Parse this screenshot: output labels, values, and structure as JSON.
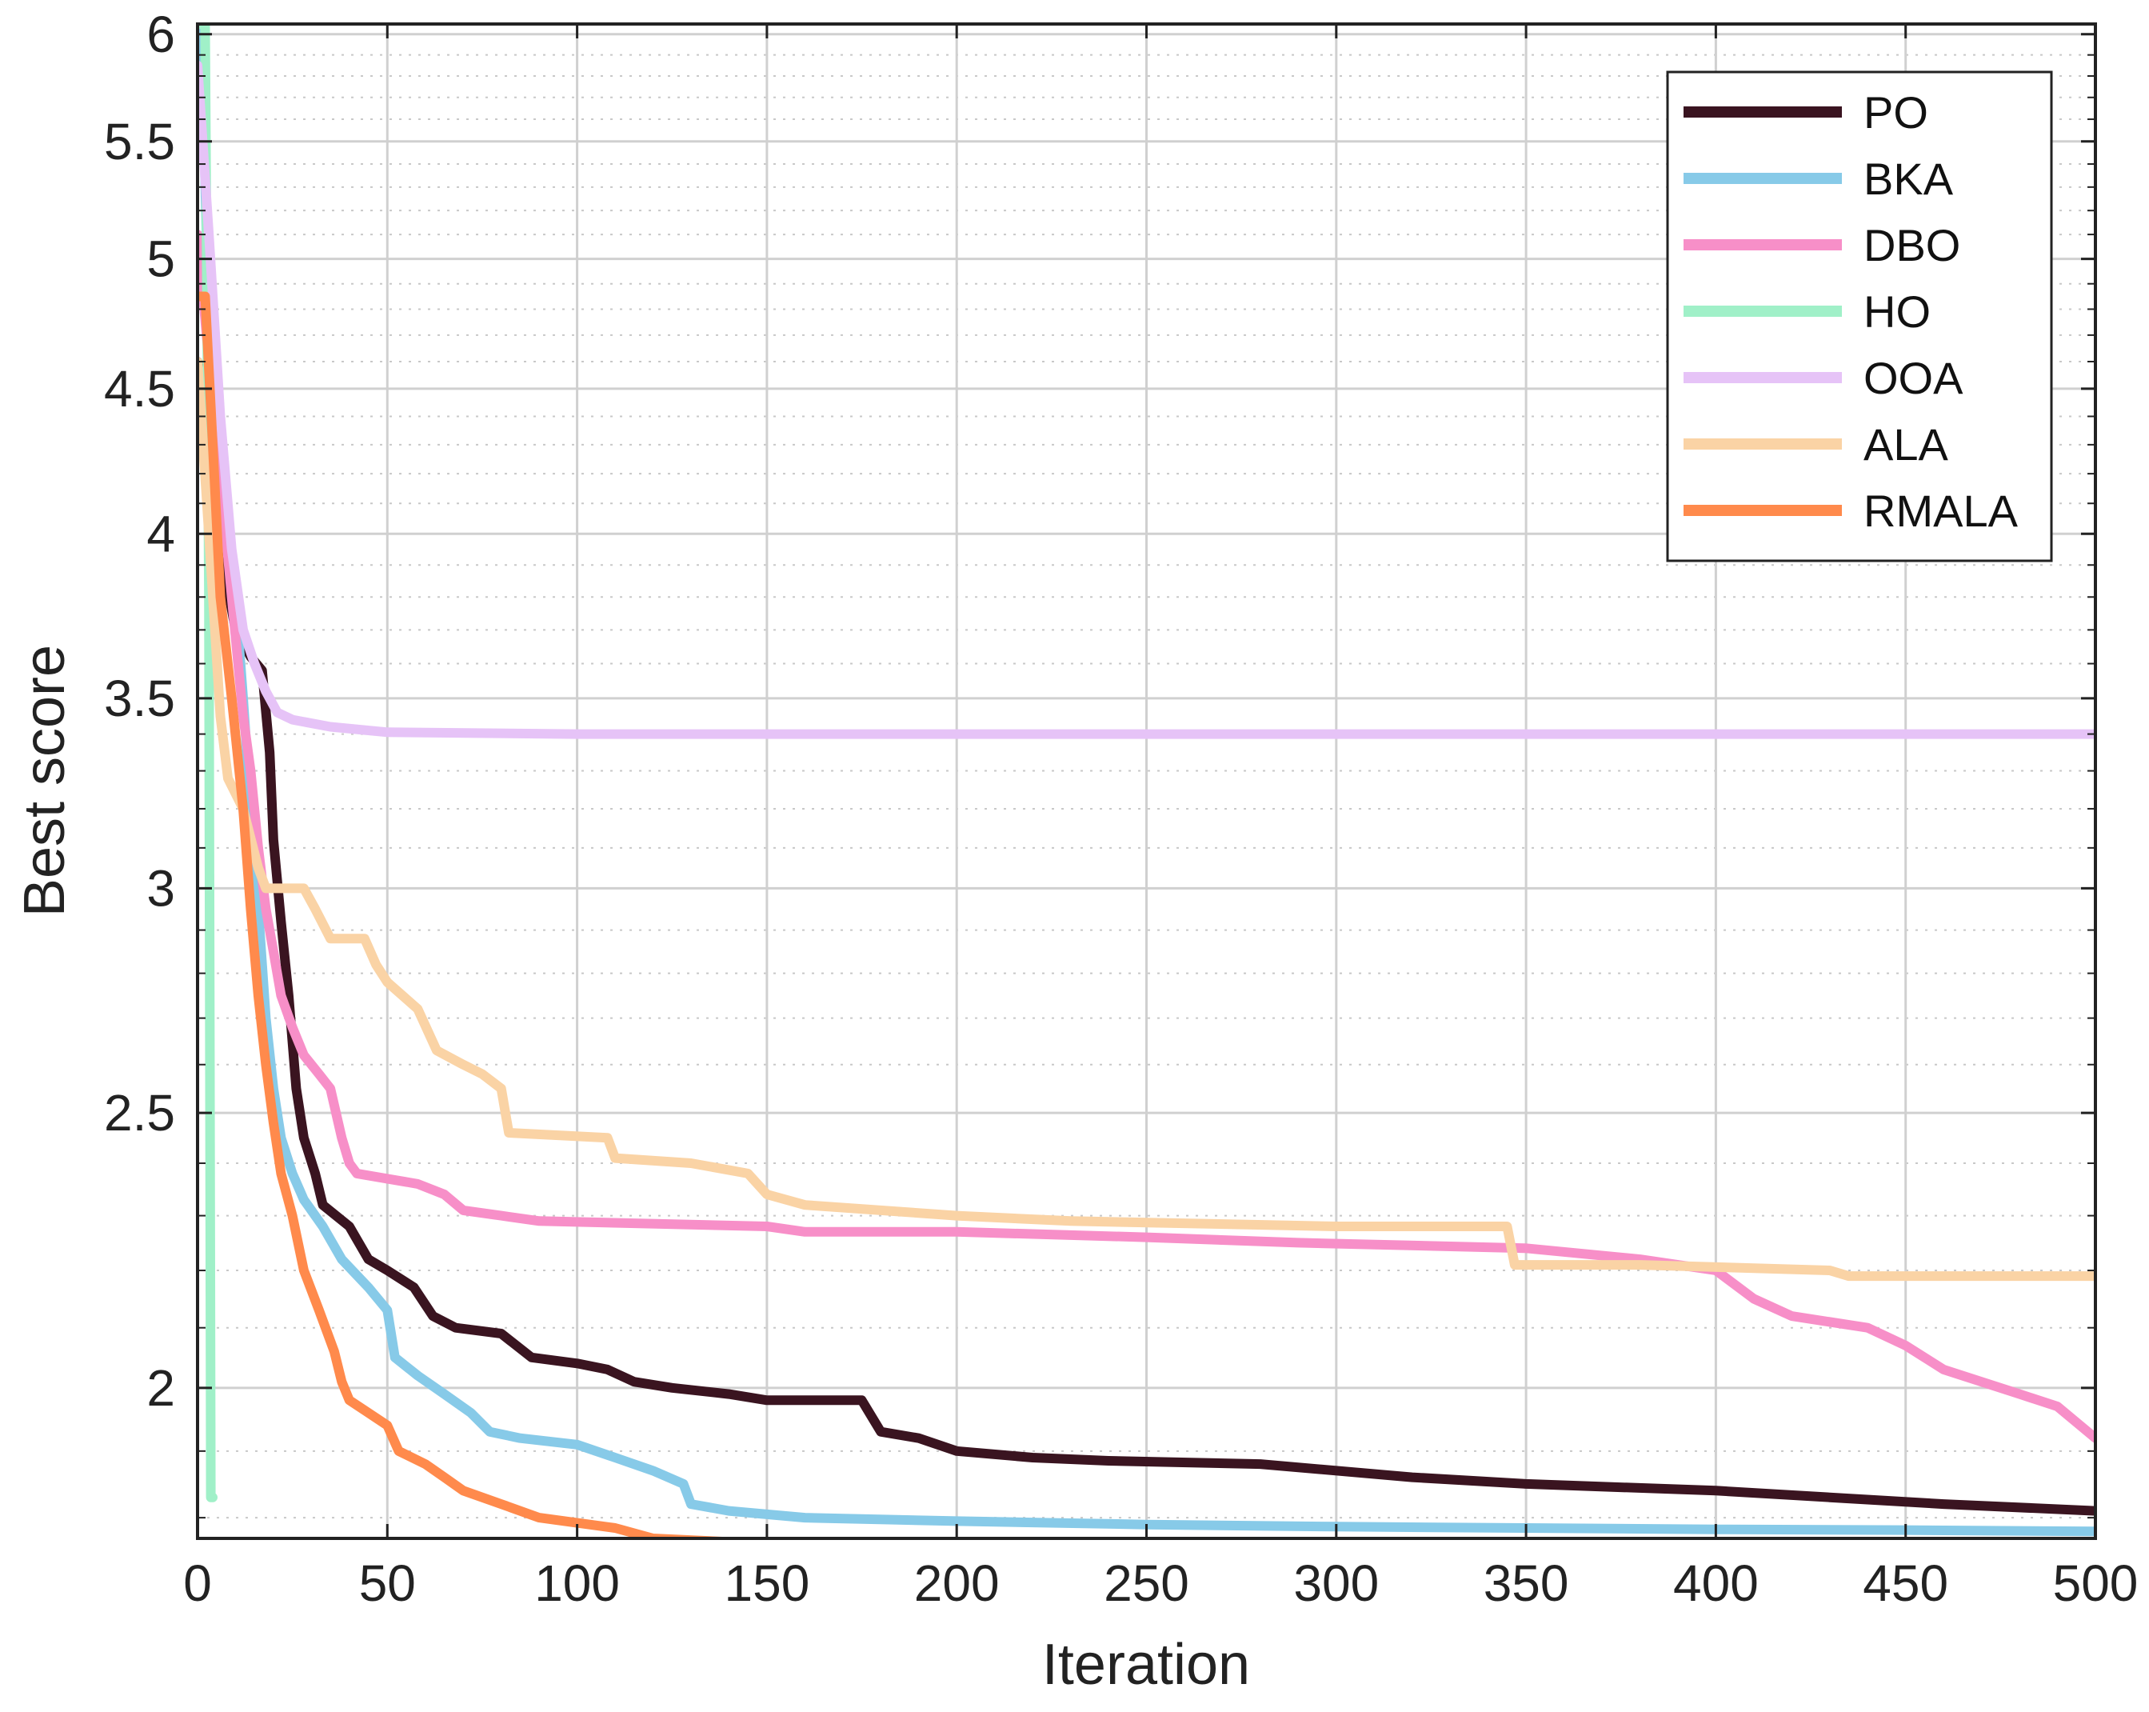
{
  "chart_data": {
    "type": "line",
    "title": "",
    "xlabel": "Iteration",
    "ylabel": "Best score",
    "xlim": [
      0,
      500
    ],
    "ylim": [
      1.77,
      6.05
    ],
    "yscale": "log",
    "grid": true,
    "minor_grid": true,
    "legend_position": "top-right",
    "xticks": [
      0,
      50,
      100,
      150,
      200,
      250,
      300,
      350,
      400,
      450,
      500
    ],
    "xtick_labels": [
      "0",
      "50",
      "100",
      "150",
      "200",
      "250",
      "300",
      "350",
      "400",
      "450",
      "500"
    ],
    "yticks": [
      2,
      2.5,
      3,
      3.5,
      4,
      4.5,
      5,
      5.5,
      6
    ],
    "ytick_labels": [
      "2",
      "2.5",
      "3",
      "3.5",
      "4",
      "4.5",
      "5",
      "5.5",
      "6"
    ],
    "series": [
      {
        "name": "PO",
        "color": "#3a1420",
        "points": [
          [
            0,
            4.6
          ],
          [
            3,
            4.3
          ],
          [
            6,
            3.95
          ],
          [
            10,
            3.7
          ],
          [
            14,
            3.62
          ],
          [
            17,
            3.58
          ],
          [
            19,
            3.35
          ],
          [
            20,
            3.12
          ],
          [
            22,
            2.92
          ],
          [
            24,
            2.75
          ],
          [
            26,
            2.55
          ],
          [
            28,
            2.45
          ],
          [
            31,
            2.38
          ],
          [
            33,
            2.32
          ],
          [
            40,
            2.28
          ],
          [
            45,
            2.22
          ],
          [
            50,
            2.2
          ],
          [
            57,
            2.17
          ],
          [
            62,
            2.12
          ],
          [
            68,
            2.1
          ],
          [
            80,
            2.09
          ],
          [
            88,
            2.05
          ],
          [
            100,
            2.04
          ],
          [
            108,
            2.03
          ],
          [
            115,
            2.01
          ],
          [
            125,
            2.0
          ],
          [
            140,
            1.99
          ],
          [
            150,
            1.98
          ],
          [
            175,
            1.98
          ],
          [
            180,
            1.93
          ],
          [
            190,
            1.92
          ],
          [
            200,
            1.9
          ],
          [
            220,
            1.89
          ],
          [
            240,
            1.885
          ],
          [
            280,
            1.88
          ],
          [
            320,
            1.86
          ],
          [
            350,
            1.85
          ],
          [
            400,
            1.84
          ],
          [
            430,
            1.83
          ],
          [
            460,
            1.82
          ],
          [
            500,
            1.81
          ]
        ]
      },
      {
        "name": "BKA",
        "color": "#87cae8",
        "points": [
          [
            0,
            6.05
          ],
          [
            1,
            6.05
          ],
          [
            3,
            4.7
          ],
          [
            6,
            4.2
          ],
          [
            10,
            3.8
          ],
          [
            12,
            3.5
          ],
          [
            14,
            3.2
          ],
          [
            16,
            2.95
          ],
          [
            18,
            2.7
          ],
          [
            20,
            2.55
          ],
          [
            22,
            2.45
          ],
          [
            25,
            2.38
          ],
          [
            28,
            2.33
          ],
          [
            33,
            2.28
          ],
          [
            38,
            2.22
          ],
          [
            45,
            2.17
          ],
          [
            50,
            2.13
          ],
          [
            52,
            2.05
          ],
          [
            58,
            2.02
          ],
          [
            65,
            1.99
          ],
          [
            72,
            1.96
          ],
          [
            77,
            1.93
          ],
          [
            85,
            1.92
          ],
          [
            100,
            1.91
          ],
          [
            110,
            1.89
          ],
          [
            120,
            1.87
          ],
          [
            128,
            1.85
          ],
          [
            130,
            1.82
          ],
          [
            140,
            1.81
          ],
          [
            160,
            1.8
          ],
          [
            200,
            1.795
          ],
          [
            250,
            1.79
          ],
          [
            300,
            1.787
          ],
          [
            350,
            1.785
          ],
          [
            400,
            1.783
          ],
          [
            450,
            1.782
          ],
          [
            500,
            1.78
          ]
        ]
      },
      {
        "name": "DBO",
        "color": "#f78fc8",
        "points": [
          [
            0,
            5.1
          ],
          [
            3,
            4.6
          ],
          [
            6,
            4.2
          ],
          [
            9,
            3.8
          ],
          [
            12,
            3.45
          ],
          [
            14,
            3.3
          ],
          [
            16,
            3.1
          ],
          [
            18,
            2.95
          ],
          [
            20,
            2.85
          ],
          [
            22,
            2.75
          ],
          [
            25,
            2.68
          ],
          [
            28,
            2.62
          ],
          [
            32,
            2.58
          ],
          [
            35,
            2.55
          ],
          [
            38,
            2.45
          ],
          [
            40,
            2.4
          ],
          [
            42,
            2.38
          ],
          [
            50,
            2.37
          ],
          [
            58,
            2.36
          ],
          [
            65,
            2.34
          ],
          [
            70,
            2.31
          ],
          [
            80,
            2.3
          ],
          [
            90,
            2.29
          ],
          [
            150,
            2.28
          ],
          [
            160,
            2.27
          ],
          [
            200,
            2.27
          ],
          [
            250,
            2.26
          ],
          [
            290,
            2.25
          ],
          [
            350,
            2.24
          ],
          [
            380,
            2.22
          ],
          [
            400,
            2.2
          ],
          [
            410,
            2.15
          ],
          [
            420,
            2.12
          ],
          [
            440,
            2.1
          ],
          [
            450,
            2.07
          ],
          [
            460,
            2.03
          ],
          [
            480,
            1.99
          ],
          [
            490,
            1.97
          ],
          [
            500,
            1.92
          ]
        ]
      },
      {
        "name": "HO",
        "color": "#a0f0c8",
        "points": [
          [
            0,
            6.05
          ],
          [
            2,
            6.05
          ],
          [
            3,
            3.8
          ],
          [
            3.5,
            1.83
          ],
          [
            4,
            1.83
          ]
        ]
      },
      {
        "name": "OOA",
        "color": "#e6c3f7",
        "points": [
          [
            0,
            5.85
          ],
          [
            3,
            5.1
          ],
          [
            6,
            4.4
          ],
          [
            9,
            3.95
          ],
          [
            12,
            3.7
          ],
          [
            15,
            3.6
          ],
          [
            18,
            3.52
          ],
          [
            21,
            3.46
          ],
          [
            25,
            3.44
          ],
          [
            35,
            3.42
          ],
          [
            50,
            3.405
          ],
          [
            100,
            3.4
          ],
          [
            200,
            3.4
          ],
          [
            300,
            3.4
          ],
          [
            400,
            3.4
          ],
          [
            500,
            3.4
          ]
        ]
      },
      {
        "name": "ALA",
        "color": "#fad3a5",
        "points": [
          [
            0,
            4.6
          ],
          [
            3,
            4.0
          ],
          [
            6,
            3.45
          ],
          [
            8,
            3.28
          ],
          [
            12,
            3.2
          ],
          [
            16,
            3.05
          ],
          [
            18,
            3.0
          ],
          [
            28,
            3.0
          ],
          [
            31,
            2.95
          ],
          [
            35,
            2.88
          ],
          [
            44,
            2.88
          ],
          [
            47,
            2.82
          ],
          [
            50,
            2.78
          ],
          [
            58,
            2.72
          ],
          [
            63,
            2.63
          ],
          [
            70,
            2.6
          ],
          [
            75,
            2.58
          ],
          [
            80,
            2.55
          ],
          [
            82,
            2.46
          ],
          [
            108,
            2.45
          ],
          [
            110,
            2.41
          ],
          [
            130,
            2.4
          ],
          [
            145,
            2.38
          ],
          [
            150,
            2.34
          ],
          [
            160,
            2.32
          ],
          [
            200,
            2.3
          ],
          [
            230,
            2.29
          ],
          [
            300,
            2.28
          ],
          [
            345,
            2.28
          ],
          [
            347,
            2.21
          ],
          [
            380,
            2.21
          ],
          [
            430,
            2.2
          ],
          [
            435,
            2.19
          ],
          [
            500,
            2.19
          ]
        ]
      },
      {
        "name": "RMALA",
        "color": "#ff8a4c",
        "points": [
          [
            0,
            4.85
          ],
          [
            2,
            4.85
          ],
          [
            4,
            4.3
          ],
          [
            6,
            3.8
          ],
          [
            9,
            3.5
          ],
          [
            12,
            3.2
          ],
          [
            14,
            2.95
          ],
          [
            16,
            2.75
          ],
          [
            18,
            2.6
          ],
          [
            20,
            2.48
          ],
          [
            22,
            2.38
          ],
          [
            25,
            2.3
          ],
          [
            28,
            2.2
          ],
          [
            32,
            2.13
          ],
          [
            36,
            2.06
          ],
          [
            38,
            2.01
          ],
          [
            40,
            1.98
          ],
          [
            45,
            1.96
          ],
          [
            50,
            1.94
          ],
          [
            53,
            1.9
          ],
          [
            60,
            1.88
          ],
          [
            65,
            1.86
          ],
          [
            70,
            1.84
          ],
          [
            80,
            1.82
          ],
          [
            90,
            1.8
          ],
          [
            110,
            1.785
          ],
          [
            120,
            1.77
          ],
          [
            140,
            1.765
          ],
          [
            160,
            1.762
          ],
          [
            200,
            1.758
          ],
          [
            250,
            1.756
          ],
          [
            300,
            1.755
          ],
          [
            400,
            1.755
          ],
          [
            500,
            1.755
          ]
        ]
      }
    ]
  }
}
